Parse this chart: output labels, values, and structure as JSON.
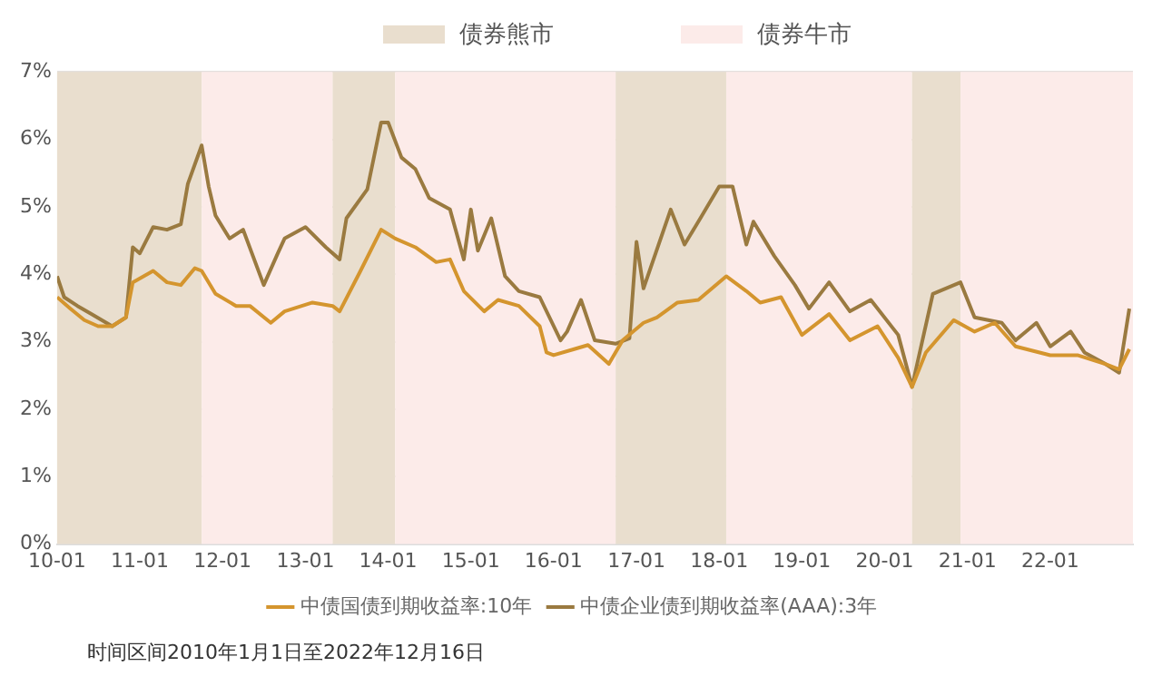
{
  "chart_data": {
    "type": "line",
    "legend": "bottom",
    "grid": "y",
    "line_style": "solid",
    "marker": "none",
    "xlim": [
      "2010-01",
      "2023-01"
    ],
    "xticks": [
      {
        "value": "2010-01",
        "label": "10-01"
      },
      {
        "value": "2011-01",
        "label": "11-01"
      },
      {
        "value": "2012-01",
        "label": "12-01"
      },
      {
        "value": "2013-01",
        "label": "13-01"
      },
      {
        "value": "2014-01",
        "label": "14-01"
      },
      {
        "value": "2015-01",
        "label": "15-01"
      },
      {
        "value": "2016-01",
        "label": "16-01"
      },
      {
        "value": "2017-01",
        "label": "17-01"
      },
      {
        "value": "2018-01",
        "label": "18-01"
      },
      {
        "value": "2019-01",
        "label": "19-01"
      },
      {
        "value": "2020-01",
        "label": "20-01"
      },
      {
        "value": "2021-01",
        "label": "21-01"
      },
      {
        "value": "2022-01",
        "label": "22-01"
      }
    ],
    "ylim": [
      0,
      7
    ],
    "yticks": [
      {
        "value": 0,
        "label": "0%"
      },
      {
        "value": 1,
        "label": "1%"
      },
      {
        "value": 2,
        "label": "2%"
      },
      {
        "value": 3,
        "label": "3%"
      },
      {
        "value": 4,
        "label": "4%"
      },
      {
        "value": 5,
        "label": "5%"
      },
      {
        "value": 6,
        "label": "6%"
      },
      {
        "value": 7,
        "label": "7%"
      }
    ],
    "bands": [
      {
        "axis": "x",
        "from": "2010-01",
        "to": "2011-10",
        "label": "债券熊市",
        "color": "#e9dece"
      },
      {
        "axis": "x",
        "from": "2011-10",
        "to": "2013-05",
        "label": "债券牛市",
        "color": "#fcebe9"
      },
      {
        "axis": "x",
        "from": "2013-05",
        "to": "2014-02",
        "color": "#e9dece"
      },
      {
        "axis": "x",
        "from": "2014-02",
        "to": "2016-10",
        "color": "#fcebe9"
      },
      {
        "axis": "x",
        "from": "2016-10",
        "to": "2018-02",
        "color": "#e9dece"
      },
      {
        "axis": "x",
        "from": "2018-02",
        "to": "2020-05",
        "color": "#fcebe9"
      },
      {
        "axis": "x",
        "from": "2020-05",
        "to": "2020-12",
        "color": "#e9dece"
      },
      {
        "axis": "x",
        "from": "2020-12",
        "to": "2023-01",
        "color": "#fcebe9"
      }
    ],
    "series": [
      {
        "name": "中债国债到期收益率:10年",
        "color": "#d4952e",
        "x": [
          "2010-01",
          "2010-03",
          "2010-05",
          "2010-07",
          "2010-09",
          "2010-11",
          "2010-12",
          "2011-03",
          "2011-05",
          "2011-07",
          "2011-09",
          "2011-10",
          "2011-12",
          "2012-03",
          "2012-05",
          "2012-08",
          "2012-10",
          "2013-02",
          "2013-05",
          "2013-06",
          "2013-09",
          "2013-12",
          "2014-02",
          "2014-05",
          "2014-08",
          "2014-10",
          "2014-12",
          "2015-03",
          "2015-05",
          "2015-08",
          "2015-11",
          "2015-12",
          "2016-01",
          "2016-04",
          "2016-06",
          "2016-09",
          "2016-11",
          "2017-02",
          "2017-04",
          "2017-07",
          "2017-10",
          "2018-02",
          "2018-05",
          "2018-07",
          "2018-10",
          "2019-01",
          "2019-05",
          "2019-08",
          "2019-12",
          "2020-03",
          "2020-05",
          "2020-07",
          "2020-11",
          "2021-02",
          "2021-05",
          "2021-08",
          "2022-01",
          "2022-05",
          "2022-09",
          "2022-11",
          "2022-12-16"
        ],
        "values": [
          3.66,
          3.49,
          3.32,
          3.23,
          3.23,
          3.36,
          3.88,
          4.05,
          3.88,
          3.84,
          4.09,
          4.05,
          3.71,
          3.53,
          3.53,
          3.28,
          3.45,
          3.58,
          3.53,
          3.45,
          4.05,
          4.66,
          4.53,
          4.4,
          4.18,
          4.22,
          3.75,
          3.45,
          3.62,
          3.53,
          3.23,
          2.84,
          2.8,
          2.89,
          2.95,
          2.67,
          3.02,
          3.28,
          3.36,
          3.58,
          3.62,
          3.97,
          3.75,
          3.58,
          3.66,
          3.1,
          3.41,
          3.02,
          3.23,
          2.76,
          2.33,
          2.84,
          3.32,
          3.15,
          3.28,
          2.93,
          2.8,
          2.8,
          2.67,
          2.59,
          2.89
        ]
      },
      {
        "name": "中债企业债到期收益率(AAA):3年",
        "color": "#9a7a40",
        "x": [
          "2010-01",
          "2010-02",
          "2010-04",
          "2010-06",
          "2010-09",
          "2010-11",
          "2010-12",
          "2011-01",
          "2011-03",
          "2011-05",
          "2011-07",
          "2011-08",
          "2011-10",
          "2011-11",
          "2011-12",
          "2012-02",
          "2012-04",
          "2012-07",
          "2012-09",
          "2012-10",
          "2013-01",
          "2013-04",
          "2013-06",
          "2013-07",
          "2013-10",
          "2013-12",
          "2014-01",
          "2014-03",
          "2014-05",
          "2014-07",
          "2014-10",
          "2014-12",
          "2015-01",
          "2015-02",
          "2015-04",
          "2015-06",
          "2015-08",
          "2015-11",
          "2016-02",
          "2016-03",
          "2016-05",
          "2016-07",
          "2016-10",
          "2016-12",
          "2017-01",
          "2017-02",
          "2017-06",
          "2017-08",
          "2017-10",
          "2018-01",
          "2018-03",
          "2018-05",
          "2018-06",
          "2018-09",
          "2018-12",
          "2019-02",
          "2019-05",
          "2019-08",
          "2019-11",
          "2020-03",
          "2020-05",
          "2020-08",
          "2020-12",
          "2021-02",
          "2021-06",
          "2021-08",
          "2021-11",
          "2022-01",
          "2022-04",
          "2022-06",
          "2022-09",
          "2022-11",
          "2022-12-16"
        ],
        "values": [
          3.97,
          3.66,
          3.53,
          3.41,
          3.23,
          3.36,
          4.4,
          4.31,
          4.7,
          4.66,
          4.74,
          5.34,
          5.91,
          5.3,
          4.87,
          4.53,
          4.66,
          3.84,
          4.31,
          4.53,
          4.7,
          4.4,
          4.22,
          4.83,
          5.26,
          6.25,
          6.25,
          5.73,
          5.56,
          5.13,
          4.96,
          4.22,
          4.96,
          4.35,
          4.83,
          3.97,
          3.75,
          3.66,
          3.02,
          3.15,
          3.62,
          3.02,
          2.97,
          3.05,
          4.48,
          3.79,
          4.96,
          4.44,
          4.78,
          5.3,
          5.3,
          4.44,
          4.78,
          4.27,
          3.84,
          3.49,
          3.88,
          3.45,
          3.62,
          3.1,
          2.33,
          3.71,
          3.88,
          3.36,
          3.28,
          3.02,
          3.28,
          2.93,
          3.15,
          2.84,
          2.67,
          2.54,
          3.49
        ]
      }
    ],
    "annotations": [
      "时间区间2010年1月1日至2022年12月16日"
    ]
  }
}
